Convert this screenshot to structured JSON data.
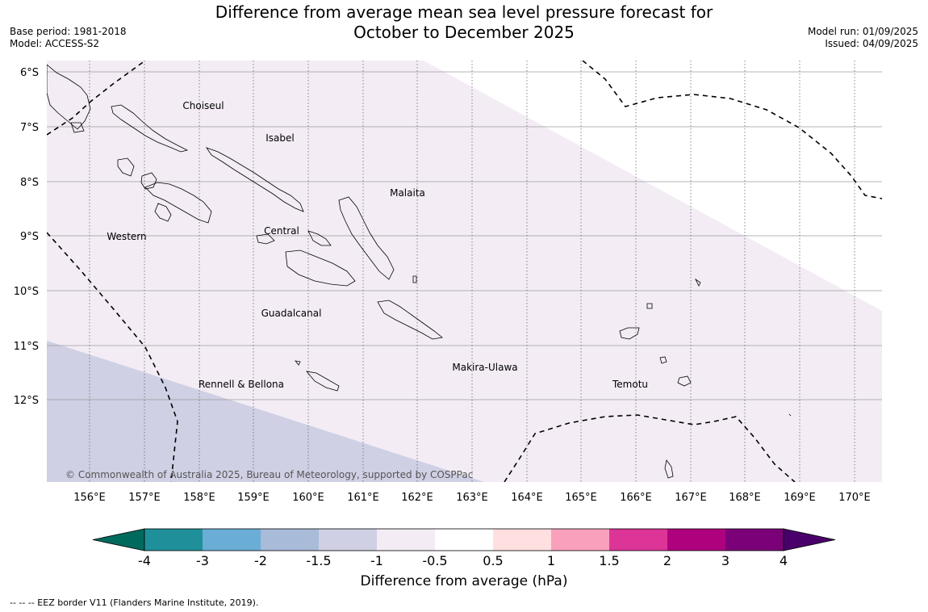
{
  "header": {
    "title_line1": "Difference from average mean sea level pressure forecast for",
    "title_line2": "October to December 2025",
    "base_period": "Base period: 1981-2018",
    "model": "Model: ACCESS-S2",
    "model_run": "Model run: 01/09/2025",
    "issued": "Issued: 04/09/2025"
  },
  "map": {
    "lat_labels": [
      "6°S",
      "7°S",
      "8°S",
      "9°S",
      "10°S",
      "11°S",
      "12°S"
    ],
    "lon_labels": [
      "156°E",
      "157°E",
      "158°E",
      "159°E",
      "160°E",
      "161°E",
      "162°E",
      "163°E",
      "164°E",
      "165°E",
      "166°E",
      "167°E",
      "168°E",
      "169°E",
      "170°E"
    ],
    "regions": [
      "Choiseul",
      "Isabel",
      "Malaita",
      "Western",
      "Central",
      "Guadalcanal",
      "Makira-Ulawa",
      "Rennell & Bellona",
      "Temotu"
    ],
    "copyright": "© Commonwealth of Australia 2025, Bureau of Meteorology, supported by COSPPac",
    "fill_colors": {
      "light_negative": "#f3ecf5",
      "moderate_negative": "#cfd0e4"
    }
  },
  "colorbar": {
    "colors": [
      "#006a5e",
      "#1f9099",
      "#6aaed6",
      "#a8bbd8",
      "#cfd0e4",
      "#f3ecf5",
      "#ffffff",
      "#ffdfe0",
      "#f9a0bd",
      "#dd3497",
      "#ae017e",
      "#7a0177",
      "#49006a"
    ],
    "tick_labels": [
      "-4",
      "-3",
      "-2",
      "-1.5",
      "-1",
      "-0.5",
      "0.5",
      "1",
      "1.5",
      "2",
      "3",
      "4"
    ],
    "label": "Difference from average (hPa)"
  },
  "footnote": "--  --  -- EEZ border V11 (Flanders Marine Institute, 2019)."
}
